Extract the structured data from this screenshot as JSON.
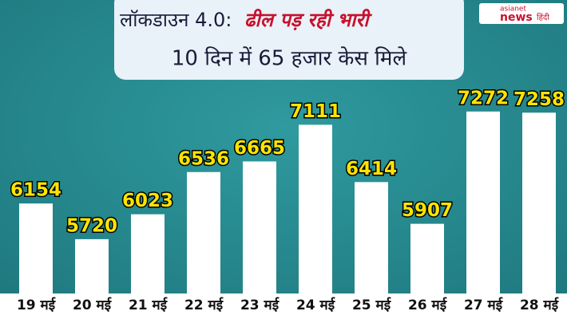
{
  "chart_data": {
    "type": "bar",
    "title": "लॉकडाउन 4.0:",
    "title_highlight": "ढील पड़ रही भारी",
    "subtitle": "10 दिन में 65 हजार केस मिले",
    "logo": [
      "asianet",
      "news",
      "हिंदी"
    ],
    "categories": [
      "19 मई",
      "20 मई",
      "21 मई",
      "22 मई",
      "23 मई",
      "24 मई",
      "25 मई",
      "26 मई",
      "27 मई",
      "28 मई"
    ],
    "values": [
      6154,
      5720,
      6023,
      6536,
      6665,
      7111,
      6414,
      5907,
      7272,
      7258
    ],
    "color": "#ffffff",
    "label_color": "#ffe400",
    "ylim": [
      5060,
      7600
    ]
  }
}
